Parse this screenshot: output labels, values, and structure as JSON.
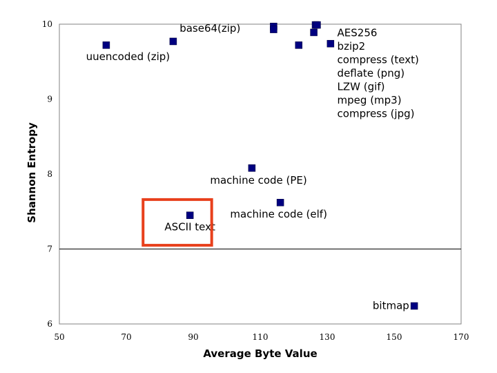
{
  "chart_data": {
    "type": "scatter",
    "xlabel": "Average Byte Value",
    "ylabel": "Shannon Entropy",
    "xlim": [
      50,
      170
    ],
    "ylim": [
      6,
      10
    ],
    "x_ticks": [
      50,
      70,
      90,
      110,
      130,
      150,
      170
    ],
    "y_ticks": [
      6,
      7,
      8,
      9,
      10
    ],
    "grid": "horizontal line at y = 7 only",
    "marker_color": "#000080",
    "highlight_color": "#e8401c",
    "points": [
      {
        "x": 64,
        "y": 9.72
      },
      {
        "x": 84,
        "y": 9.77
      },
      {
        "x": 114,
        "y": 9.97
      },
      {
        "x": 114,
        "y": 9.93
      },
      {
        "x": 121.5,
        "y": 9.72
      },
      {
        "x": 126,
        "y": 9.89
      },
      {
        "x": 126.5,
        "y": 9.99
      },
      {
        "x": 127,
        "y": 9.99
      },
      {
        "x": 131,
        "y": 9.74
      },
      {
        "x": 107.5,
        "y": 8.08
      },
      {
        "x": 116,
        "y": 7.62
      },
      {
        "x": 89,
        "y": 7.45
      },
      {
        "x": 156,
        "y": 6.24
      }
    ],
    "annotations": [
      {
        "text": "base64(zip)",
        "x": 95,
        "y": 9.9,
        "anchor": "middle"
      },
      {
        "text": "uuencoded (zip)",
        "x": 70.5,
        "y": 9.52,
        "anchor": "middle"
      },
      {
        "text": "AES256",
        "x": 133,
        "y": 9.84,
        "anchor": "start"
      },
      {
        "text": "bzip2",
        "x": 133,
        "y": 9.66,
        "anchor": "start"
      },
      {
        "text": "compress (text)",
        "x": 133,
        "y": 9.48,
        "anchor": "start"
      },
      {
        "text": "deflate (png)",
        "x": 133,
        "y": 9.3,
        "anchor": "start"
      },
      {
        "text": "LZW (gif)",
        "x": 133,
        "y": 9.12,
        "anchor": "start"
      },
      {
        "text": "mpeg (mp3)",
        "x": 133,
        "y": 8.94,
        "anchor": "start"
      },
      {
        "text": "compress (jpg)",
        "x": 133,
        "y": 8.76,
        "anchor": "start"
      },
      {
        "text": "machine code (PE)",
        "x": 109.5,
        "y": 7.87,
        "anchor": "middle"
      },
      {
        "text": "machine code (elf)",
        "x": 115.5,
        "y": 7.42,
        "anchor": "middle"
      },
      {
        "text": "ASCII text",
        "x": 89,
        "y": 7.25,
        "anchor": "middle"
      },
      {
        "text": "bitmap",
        "x": 154.5,
        "y": 6.2,
        "anchor": "end"
      }
    ],
    "highlight_box": {
      "x_range": [
        75,
        95.5
      ],
      "y_range": [
        7.05,
        7.66
      ]
    }
  }
}
